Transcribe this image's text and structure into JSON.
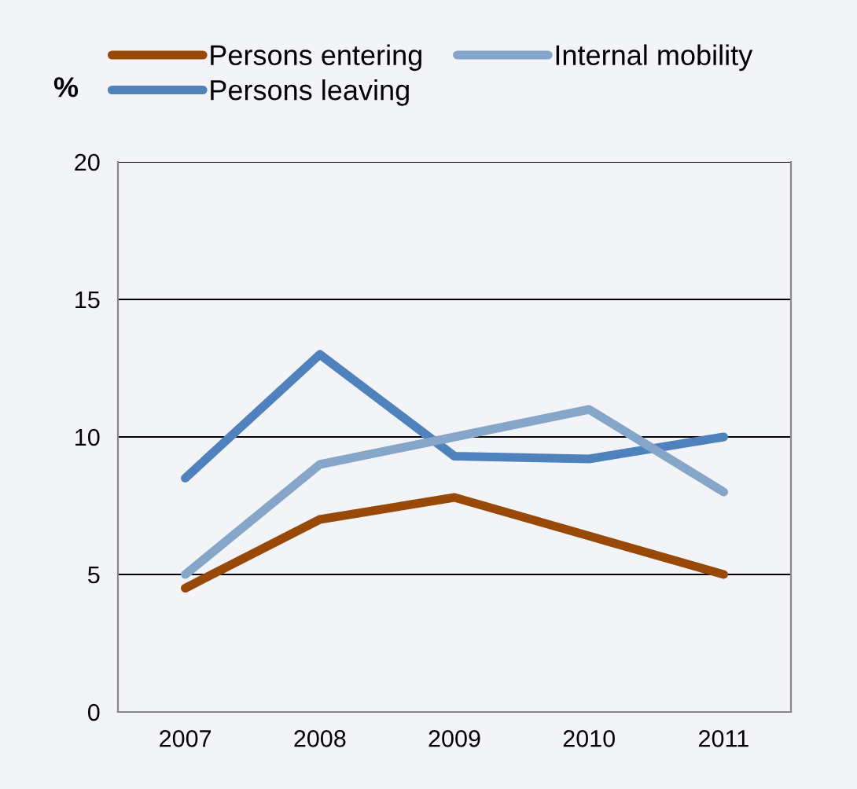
{
  "chart_data": {
    "type": "line",
    "ylabel": "%",
    "categories": [
      "2007",
      "2008",
      "2009",
      "2010",
      "2011"
    ],
    "series": [
      {
        "name": "Persons entering",
        "color": "#984807",
        "values": [
          4.5,
          7,
          7.8,
          6.4,
          5
        ]
      },
      {
        "name": "Persons leaving",
        "color": "#4f81bd",
        "values": [
          8.5,
          13,
          9.3,
          9.2,
          10
        ]
      },
      {
        "name": "Internal mobility",
        "color": "#85a6c9",
        "values": [
          5,
          9,
          10,
          11,
          8
        ]
      }
    ],
    "ylim": [
      0,
      20
    ],
    "yticks": [
      0,
      5,
      10,
      15,
      20
    ],
    "grid": "y",
    "legend": "top",
    "marker": "none",
    "line_style": "solid"
  }
}
